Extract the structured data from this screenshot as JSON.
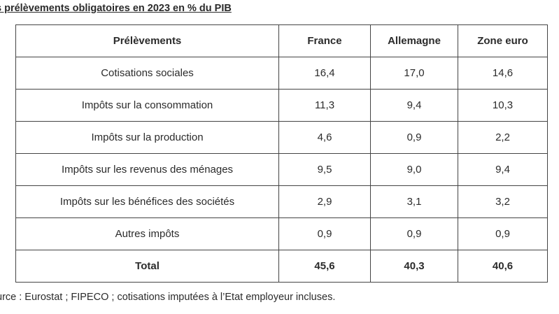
{
  "caption": "s prélèvements obligatoires en 2023 en % du PIB",
  "table": {
    "headers": [
      "Prélèvements",
      "France",
      "Allemagne",
      "Zone euro"
    ],
    "rows": [
      {
        "label": "Cotisations sociales",
        "france": "16,4",
        "allemagne": "17,0",
        "zone_euro": "14,6"
      },
      {
        "label": "Impôts sur la consommation",
        "france": "11,3",
        "allemagne": "9,4",
        "zone_euro": "10,3"
      },
      {
        "label": "Impôts sur la production",
        "france": "4,6",
        "allemagne": "0,9",
        "zone_euro": "2,2"
      },
      {
        "label": "Impôts sur les revenus des ménages",
        "france": "9,5",
        "allemagne": "9,0",
        "zone_euro": "9,4"
      },
      {
        "label": "Impôts sur les bénéfices des sociétés",
        "france": "2,9",
        "allemagne": "3,1",
        "zone_euro": "3,2"
      },
      {
        "label": "Autres impôts",
        "france": "0,9",
        "allemagne": "0,9",
        "zone_euro": "0,9"
      }
    ],
    "total": {
      "label": "Total",
      "france": "45,6",
      "allemagne": "40,3",
      "zone_euro": "40,6"
    }
  },
  "source": "urce : Eurostat ; FIPECO ; cotisations imputées à l’Etat employeur incluses."
}
